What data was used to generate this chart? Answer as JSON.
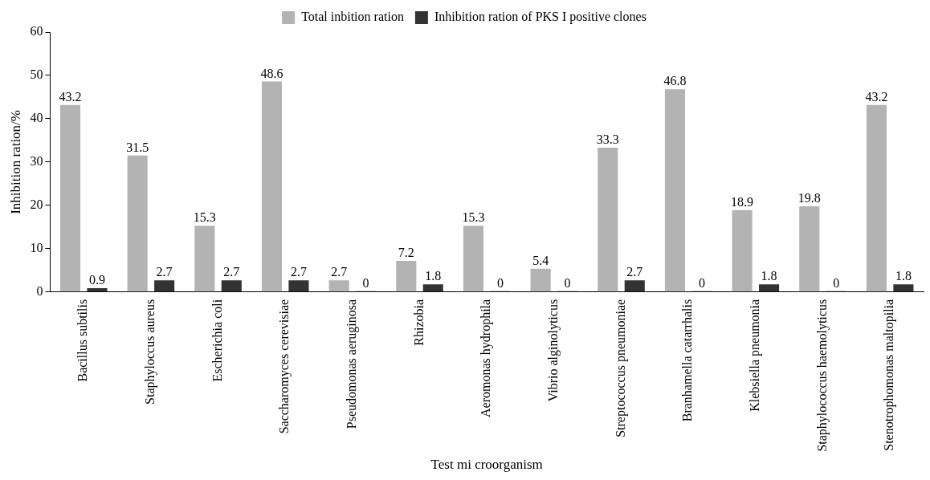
{
  "chart_data": {
    "type": "bar",
    "xlabel": "Test mi croorganism",
    "ylabel": "Inhibition ration/%",
    "categories": [
      "Bacillus subtilis",
      "Staphyloccus aureus",
      "Escherichia coli",
      "Saccharomyces cerevisiae",
      "Pseudomonas aeruginosa",
      "Rhizobia",
      "Aeromonas hydrophila",
      "Vibrio alginolyticus",
      "Streptococcus pneumoniae",
      "Branhamella catarrhalis",
      "Klebsiella pneumonia",
      "Staphylococcus haemolyticus",
      "Stenotrophomonas maltopilia"
    ],
    "series": [
      {
        "name": "Total inbition ration",
        "color": "#b3b3b3",
        "values": [
          43.2,
          31.5,
          15.3,
          48.6,
          2.7,
          7.2,
          15.3,
          5.4,
          33.3,
          46.8,
          18.9,
          19.8,
          43.2
        ]
      },
      {
        "name": "Inhibition ration of PKS I positive clones",
        "color": "#333333",
        "values": [
          0.9,
          2.7,
          2.7,
          2.7,
          0,
          1.8,
          0,
          0,
          2.7,
          0,
          1.8,
          0,
          1.8
        ]
      }
    ],
    "ylim": [
      0,
      60
    ],
    "yticks": [
      0,
      10,
      20,
      30,
      40,
      50,
      60
    ],
    "grid": false,
    "legend": "top",
    "data_labels": true
  }
}
